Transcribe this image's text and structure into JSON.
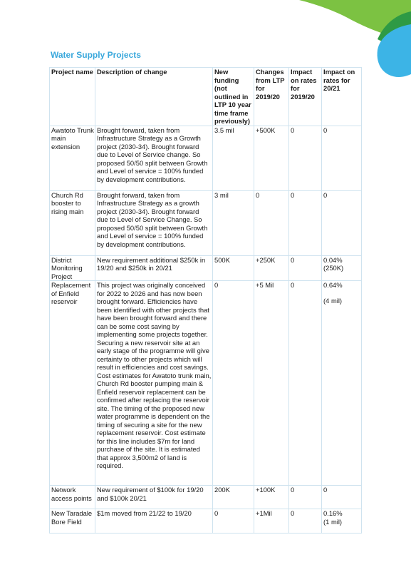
{
  "page": {
    "title": "Water Supply Projects"
  },
  "table": {
    "headers": [
      "Project name",
      "Description of change",
      "New funding (not outlined in LTP 10 year time frame previously)",
      "Changes from LTP for 2019/20",
      "Impact on rates for 2019/20",
      "Impact on rates for 20/21"
    ],
    "rows": [
      {
        "project": "Awatoto Trunk main extension",
        "description": "Brought forward, taken from Infrastructure Strategy as a Growth project (2030-34). Brought forward due to Level of Service change. So proposed 50/50 split between Growth and Level of service = 100% funded by development contributions.",
        "new_funding": "3.5 mil",
        "change_ltp": "+500K",
        "impact_1920": "0",
        "impact_2021": "0",
        "impact_2021_extra": ""
      },
      {
        "project": "Church Rd booster to rising main",
        "description": "Brought forward, taken from Infrastructure Strategy as a growth project (2030-34). Brought forward due to Level of Service Change. So proposed 50/50 split between Growth and Level of service = 100% funded by development contributions.",
        "new_funding": "3 mil",
        "change_ltp": "0",
        "impact_1920": "0",
        "impact_2021": "0",
        "impact_2021_extra": ""
      },
      {
        "project": "District Monitoring Project",
        "description": "New requirement additional $250k in 19/20 and $250k in 20/21",
        "new_funding": "500K",
        "change_ltp": "+250K",
        "impact_1920": "0",
        "impact_2021": "0.04%",
        "impact_2021_extra": "(250K)"
      },
      {
        "project": "Replacement of Enfield reservoir",
        "description": "This project was originally conceived for 2022 to 2026 and has now been brought forward. Efficiencies have been identified with other projects that have been brought forward and there can be some cost saving by implementing some projects together. Securing a new reservoir site at an early stage of the programme will give certainty to other projects which will result in efficiencies and cost savings. Cost estimates for Awatoto trunk main, Church Rd booster pumping main & Enfield reservoir replacement can be confirmed after replacing the reservoir site. The timing of the proposed new water programme is dependent on the timing of securing a site for the new replacement reservoir. Cost estimate for this line includes $7m for land purchase of the site. It is estimated that approx 3,500m2 of land is required.",
        "new_funding": "0",
        "change_ltp": "+5 Mil",
        "impact_1920": "0",
        "impact_2021": "0.64%",
        "impact_2021_extra": "(4 mil)"
      },
      {
        "project": "Network access points",
        "description": "New requirement of $100k for 19/20 and $100k 20/21",
        "new_funding": "200K",
        "change_ltp": "+100K",
        "impact_1920": "0",
        "impact_2021": "0",
        "impact_2021_extra": ""
      },
      {
        "project": "New Taradale Bore Field",
        "description": "$1m moved from 21/22 to 19/20",
        "new_funding": "0",
        "change_ltp": "+1Mil",
        "impact_1920": "0",
        "impact_2021": "0.16%",
        "impact_2021_extra": "(1 mil)"
      }
    ]
  },
  "colors": {
    "title": "#3aa8dc",
    "border": "#cfe3ef",
    "deco_green": "#7cc242",
    "deco_dark_green": "#2e9a45",
    "deco_blue": "#3cb4e6"
  }
}
